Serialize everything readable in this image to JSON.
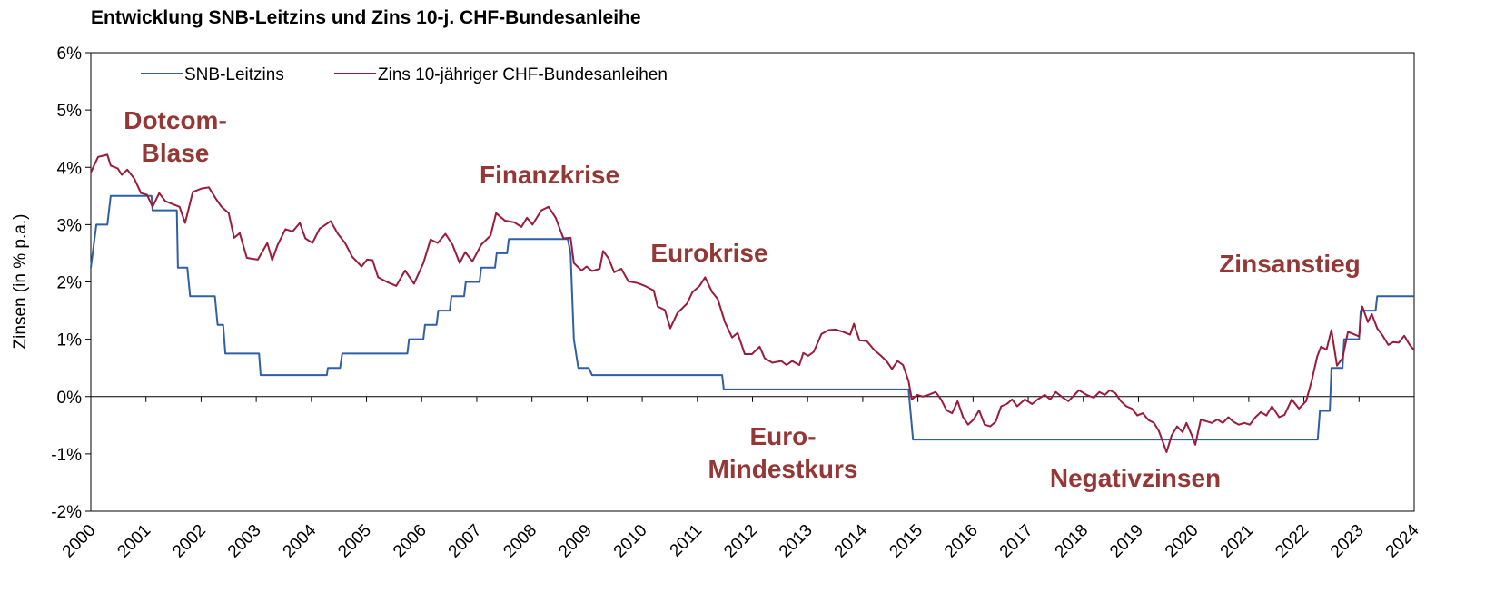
{
  "chart_data": {
    "type": "line",
    "title": "Entwicklung SNB-Leitzins und Zins 10-j. CHF-Bundesanleihe",
    "y_label": "Zinsen (in % p.a.)",
    "xlim": [
      2000,
      2024
    ],
    "xticks": [
      2000,
      2001,
      2002,
      2003,
      2004,
      2005,
      2006,
      2007,
      2008,
      2009,
      2010,
      2011,
      2012,
      2013,
      2014,
      2015,
      2016,
      2017,
      2018,
      2019,
      2020,
      2021,
      2022,
      2023,
      2024
    ],
    "ylim": [
      -2,
      6
    ],
    "yticks": [
      {
        "value": -2,
        "label": "-2%"
      },
      {
        "value": -1,
        "label": "-1%"
      },
      {
        "value": 0,
        "label": "0%"
      },
      {
        "value": 1,
        "label": "1%"
      },
      {
        "value": 2,
        "label": "2%"
      },
      {
        "value": 3,
        "label": "3%"
      },
      {
        "value": 4,
        "label": "4%"
      },
      {
        "value": 5,
        "label": "5%"
      },
      {
        "value": 6,
        "label": "6%"
      }
    ],
    "grid": false,
    "legend": "upper left",
    "annotations": [
      [
        "Dotcom-",
        "Blase"
      ],
      [
        "Finanzkrise"
      ],
      [
        "Eurokrise"
      ],
      [
        "Euro-",
        "Mindestkurs"
      ],
      [
        "Negativzinsen"
      ],
      [
        "Zinsanstieg"
      ]
    ],
    "series": [
      {
        "name": "SNB-Leitzins",
        "color": "#2e5fa8",
        "x": [
          2000.0,
          2000.1,
          2000.3,
          2000.36,
          2001.1,
          2001.12,
          2001.56,
          2001.58,
          2001.75,
          2001.8,
          2002.25,
          2002.3,
          2002.4,
          2002.44,
          2003.05,
          2003.08,
          2004.28,
          2004.3,
          2004.52,
          2004.56,
          2005.74,
          2005.77,
          2006.03,
          2006.06,
          2006.27,
          2006.3,
          2006.51,
          2006.54,
          2006.77,
          2006.8,
          2007.05,
          2007.08,
          2007.33,
          2007.36,
          2007.55,
          2007.58,
          2008.65,
          2008.7,
          2008.76,
          2008.84,
          2009.03,
          2009.09,
          2011.45,
          2011.48,
          2014.83,
          2014.91,
          2022.25,
          2022.29,
          2022.47,
          2022.5,
          2022.7,
          2022.73,
          2023.0,
          2023.03,
          2023.3,
          2023.33,
          2024.0
        ],
        "values": [
          2.25,
          3.0,
          3.0,
          3.5,
          3.5,
          3.25,
          3.25,
          2.25,
          2.25,
          1.75,
          1.75,
          1.25,
          1.25,
          0.75,
          0.75,
          0.375,
          0.375,
          0.5,
          0.5,
          0.75,
          0.75,
          1.0,
          1.0,
          1.25,
          1.25,
          1.5,
          1.5,
          1.75,
          1.75,
          2.0,
          2.0,
          2.25,
          2.25,
          2.5,
          2.5,
          2.75,
          2.75,
          2.5,
          1.0,
          0.5,
          0.5,
          0.375,
          0.375,
          0.125,
          0.125,
          -0.75,
          -0.75,
          -0.25,
          -0.25,
          0.5,
          0.5,
          1.0,
          1.0,
          1.5,
          1.5,
          1.75,
          1.75
        ]
      },
      {
        "name": "Zins 10-jähriger CHF-Bundesanleihen",
        "color": "#9b1b3b",
        "x": [
          2000.0,
          2000.13,
          2000.3,
          2000.36,
          2000.49,
          2000.56,
          2000.66,
          2000.79,
          2000.91,
          2001.02,
          2001.12,
          2001.24,
          2001.35,
          2001.48,
          2001.61,
          2001.71,
          2001.85,
          2002.01,
          2002.14,
          2002.27,
          2002.37,
          2002.5,
          2002.6,
          2002.7,
          2002.83,
          2003.03,
          2003.2,
          2003.29,
          2003.39,
          2003.53,
          2003.66,
          2003.79,
          2003.89,
          2004.02,
          2004.15,
          2004.35,
          2004.48,
          2004.61,
          2004.74,
          2004.91,
          2005.01,
          2005.11,
          2005.21,
          2005.35,
          2005.54,
          2005.7,
          2005.86,
          2006.03,
          2006.16,
          2006.29,
          2006.43,
          2006.56,
          2006.69,
          2006.79,
          2006.92,
          2007.08,
          2007.25,
          2007.35,
          2007.51,
          2007.68,
          2007.81,
          2007.91,
          2008.01,
          2008.17,
          2008.3,
          2008.43,
          2008.57,
          2008.7,
          2008.76,
          2008.9,
          2008.99,
          2009.09,
          2009.23,
          2009.29,
          2009.39,
          2009.49,
          2009.62,
          2009.75,
          2009.92,
          2010.05,
          2010.21,
          2010.28,
          2010.41,
          2010.51,
          2010.64,
          2010.81,
          2010.91,
          2011.04,
          2011.14,
          2011.27,
          2011.37,
          2011.5,
          2011.63,
          2011.73,
          2011.86,
          2011.99,
          2012.13,
          2012.22,
          2012.36,
          2012.52,
          2012.62,
          2012.72,
          2012.85,
          2012.92,
          2013.01,
          2013.11,
          2013.25,
          2013.38,
          2013.51,
          2013.64,
          2013.77,
          2013.84,
          2013.94,
          2014.07,
          2014.2,
          2014.33,
          2014.43,
          2014.53,
          2014.63,
          2014.73,
          2014.83,
          2014.89,
          2014.99,
          2015.09,
          2015.19,
          2015.32,
          2015.42,
          2015.52,
          2015.62,
          2015.72,
          2015.82,
          2015.91,
          2016.01,
          2016.11,
          2016.21,
          2016.31,
          2016.41,
          2016.51,
          2016.61,
          2016.71,
          2016.8,
          2016.94,
          2017.07,
          2017.17,
          2017.3,
          2017.4,
          2017.5,
          2017.63,
          2017.73,
          2017.83,
          2017.92,
          2018.06,
          2018.19,
          2018.29,
          2018.39,
          2018.48,
          2018.58,
          2018.68,
          2018.78,
          2018.88,
          2018.98,
          2019.08,
          2019.18,
          2019.28,
          2019.37,
          2019.51,
          2019.6,
          2019.7,
          2019.8,
          2019.87,
          2019.97,
          2020.03,
          2020.13,
          2020.23,
          2020.33,
          2020.43,
          2020.53,
          2020.63,
          2020.72,
          2020.82,
          2020.92,
          2021.02,
          2021.12,
          2021.22,
          2021.32,
          2021.42,
          2021.55,
          2021.65,
          2021.78,
          2021.91,
          2022.04,
          2022.14,
          2022.24,
          2022.31,
          2022.41,
          2022.5,
          2022.6,
          2022.7,
          2022.8,
          2022.9,
          2023.0,
          2023.06,
          2023.16,
          2023.23,
          2023.33,
          2023.43,
          2023.53,
          2023.62,
          2023.72,
          2023.82,
          2023.92,
          2023.99
        ],
        "values": [
          3.91,
          4.18,
          4.22,
          4.03,
          3.98,
          3.87,
          3.96,
          3.8,
          3.55,
          3.52,
          3.31,
          3.55,
          3.41,
          3.36,
          3.31,
          3.03,
          3.57,
          3.63,
          3.65,
          3.45,
          3.31,
          3.2,
          2.77,
          2.85,
          2.42,
          2.39,
          2.68,
          2.38,
          2.65,
          2.92,
          2.88,
          3.03,
          2.76,
          2.68,
          2.93,
          3.06,
          2.84,
          2.68,
          2.44,
          2.27,
          2.39,
          2.38,
          2.08,
          2.01,
          1.93,
          2.2,
          1.97,
          2.33,
          2.74,
          2.68,
          2.84,
          2.65,
          2.33,
          2.52,
          2.36,
          2.65,
          2.81,
          3.2,
          3.07,
          3.04,
          2.96,
          3.12,
          3.0,
          3.25,
          3.31,
          3.12,
          2.76,
          2.77,
          2.33,
          2.2,
          2.27,
          2.19,
          2.23,
          2.54,
          2.41,
          2.17,
          2.23,
          2.01,
          1.98,
          1.93,
          1.85,
          1.57,
          1.51,
          1.19,
          1.46,
          1.62,
          1.82,
          1.93,
          2.08,
          1.82,
          1.7,
          1.3,
          1.03,
          1.11,
          0.74,
          0.74,
          0.87,
          0.67,
          0.59,
          0.62,
          0.55,
          0.62,
          0.55,
          0.76,
          0.71,
          0.78,
          1.09,
          1.16,
          1.17,
          1.13,
          1.08,
          1.27,
          0.98,
          0.97,
          0.82,
          0.71,
          0.62,
          0.48,
          0.62,
          0.55,
          0.27,
          -0.05,
          0.03,
          0.0,
          0.03,
          0.08,
          -0.05,
          -0.24,
          -0.29,
          -0.08,
          -0.36,
          -0.49,
          -0.4,
          -0.24,
          -0.49,
          -0.52,
          -0.44,
          -0.17,
          -0.13,
          -0.05,
          -0.17,
          -0.05,
          -0.13,
          -0.05,
          0.03,
          -0.05,
          0.08,
          -0.02,
          -0.08,
          0.02,
          0.11,
          0.03,
          -0.02,
          0.08,
          0.03,
          0.11,
          0.06,
          -0.08,
          -0.17,
          -0.21,
          -0.33,
          -0.29,
          -0.41,
          -0.46,
          -0.6,
          -0.97,
          -0.68,
          -0.52,
          -0.62,
          -0.46,
          -0.68,
          -0.84,
          -0.4,
          -0.43,
          -0.46,
          -0.4,
          -0.46,
          -0.36,
          -0.44,
          -0.49,
          -0.46,
          -0.49,
          -0.36,
          -0.27,
          -0.33,
          -0.17,
          -0.36,
          -0.32,
          -0.05,
          -0.21,
          -0.08,
          0.27,
          0.7,
          0.87,
          0.82,
          1.16,
          0.54,
          0.67,
          1.13,
          1.09,
          1.05,
          1.57,
          1.3,
          1.44,
          1.19,
          1.06,
          0.9,
          0.95,
          0.94,
          1.06,
          0.9,
          0.82
        ]
      }
    ]
  }
}
